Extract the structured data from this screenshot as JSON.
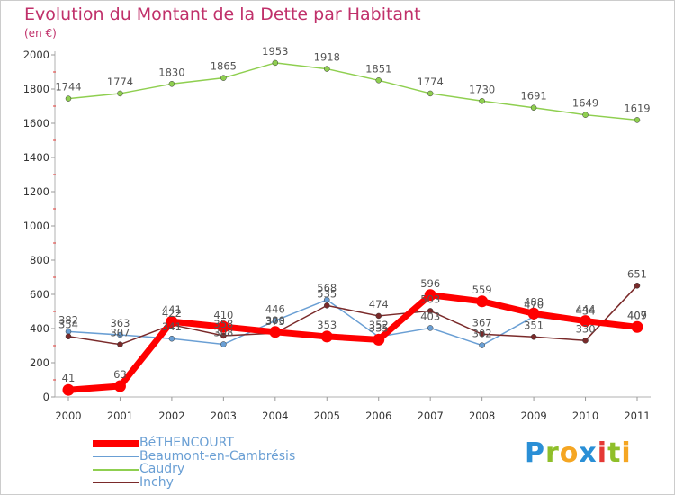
{
  "chart_data": {
    "type": "line",
    "title": "Evolution du Montant de la Dette par Habitant",
    "subtitle": "(en €)",
    "x": [
      "2000",
      "2001",
      "2002",
      "2003",
      "2004",
      "2005",
      "2006",
      "2007",
      "2008",
      "2009",
      "2010",
      "2011"
    ],
    "ylim": [
      0,
      2000
    ],
    "yticks": [
      0,
      200,
      400,
      600,
      800,
      1000,
      1200,
      1400,
      1600,
      1800,
      2000
    ],
    "grid": false,
    "legend_position": "bottom-left",
    "series": [
      {
        "name": "BéTHENCOURT",
        "color": "#ff0000",
        "width": 7,
        "values": [
          41,
          63,
          441,
          410,
          380,
          353,
          335,
          596,
          559,
          488,
          444,
          409
        ]
      },
      {
        "name": "Beaumont-en-Cambrésis",
        "color": "#6a9fd4",
        "width": 1.5,
        "values": [
          382,
          363,
          341,
          308,
          446,
          568,
          352,
          403,
          302,
          470,
          434,
          407
        ]
      },
      {
        "name": "Caudry",
        "color": "#8fcf50",
        "width": 1.5,
        "values": [
          1744,
          1774,
          1830,
          1865,
          1953,
          1918,
          1851,
          1774,
          1730,
          1691,
          1649,
          1619
        ]
      },
      {
        "name": "Inchy",
        "color": "#7a2a2a",
        "width": 1.5,
        "values": [
          354,
          307,
          422,
          358,
          373,
          535,
          474,
          503,
          367,
          351,
          330,
          651
        ]
      }
    ]
  },
  "logo": {
    "letters": [
      "P",
      "r",
      "o",
      "x",
      "i",
      "t",
      "i"
    ],
    "colors": [
      "#2a8fd6",
      "#8fbf2a",
      "#f5a623",
      "#2a8fd6",
      "#e53935",
      "#8fbf2a",
      "#f5a623"
    ]
  }
}
